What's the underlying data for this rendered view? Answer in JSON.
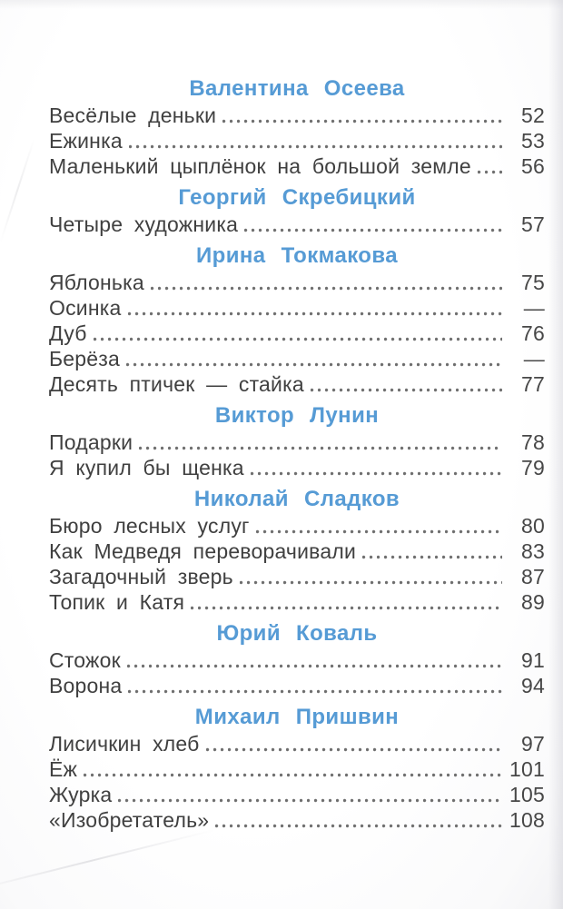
{
  "page": {
    "heading_color": "#569bd5",
    "text_color": "#404040",
    "dot_color": "#6e6e6e",
    "background_color": "#fdfdfe"
  },
  "toc": {
    "sections": [
      {
        "author": "Валентина  Осеева",
        "entries": [
          {
            "title": "Весёлые  деньки",
            "page": "52"
          },
          {
            "title": "Ежинка",
            "page": "53"
          },
          {
            "title": "Маленький  цыплёнок  на  большой  земле",
            "page": "56"
          }
        ]
      },
      {
        "author": "Георгий  Скребицкий",
        "entries": [
          {
            "title": "Четыре  художника",
            "page": "57"
          }
        ]
      },
      {
        "author": "Ирина  Токмакова",
        "entries": [
          {
            "title": "Яблонька",
            "page": "75"
          },
          {
            "title": "Осинка",
            "page": "—"
          },
          {
            "title": "Дуб",
            "page": "76"
          },
          {
            "title": "Берёза",
            "page": "—"
          },
          {
            "title": "Десять  птичек  —  стайка",
            "page": "77"
          }
        ]
      },
      {
        "author": "Виктор  Лунин",
        "entries": [
          {
            "title": "Подарки",
            "page": "78"
          },
          {
            "title": "Я  купил  бы  щенка",
            "page": "79"
          }
        ]
      },
      {
        "author": "Николай  Сладков",
        "entries": [
          {
            "title": "Бюро  лесных  услуг",
            "page": "80"
          },
          {
            "title": "Как  Медведя  переворачивали",
            "page": "83"
          },
          {
            "title": "Загадочный  зверь",
            "page": "87"
          },
          {
            "title": "Топик  и  Катя",
            "page": "89"
          }
        ]
      },
      {
        "author": "Юрий  Коваль",
        "entries": [
          {
            "title": "Стожок",
            "page": "91"
          },
          {
            "title": "Ворона",
            "page": "94"
          }
        ]
      },
      {
        "author": "Михаил  Пришвин",
        "entries": [
          {
            "title": "Лисичкин  хлеб",
            "page": "97"
          },
          {
            "title": "Ёж",
            "page": "101"
          },
          {
            "title": "Журка",
            "page": "105"
          },
          {
            "title": "«Изобретатель»",
            "page": "108"
          }
        ]
      }
    ]
  }
}
